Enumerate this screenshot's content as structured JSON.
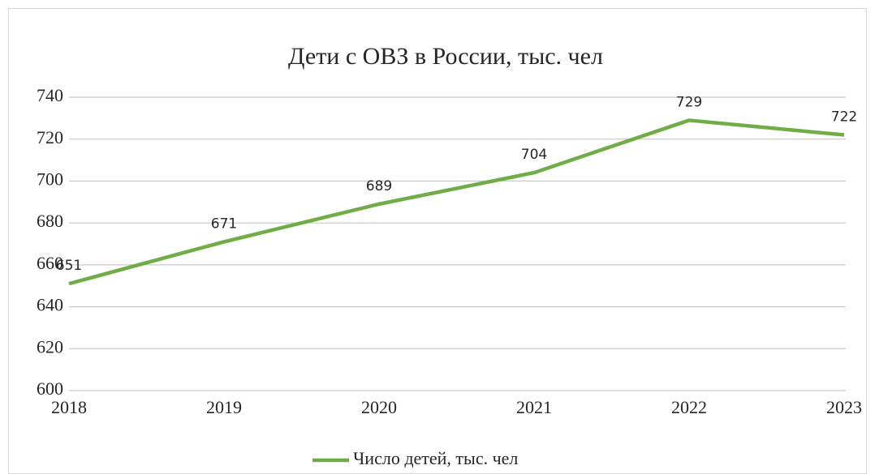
{
  "chart_data": {
    "type": "line",
    "title": "Дети с ОВЗ в России, тыс. чел",
    "categories": [
      "2018",
      "2019",
      "2020",
      "2021",
      "2022",
      "2023"
    ],
    "series": [
      {
        "name": "Число детей, тыс. чел",
        "color": "#70ad47",
        "values": [
          651,
          671,
          689,
          704,
          729,
          722
        ]
      }
    ],
    "ylim": [
      600,
      740
    ],
    "yticks": [
      600,
      620,
      640,
      660,
      680,
      700,
      720,
      740
    ],
    "grid": true,
    "data_labels": true,
    "legend": "bottom"
  }
}
